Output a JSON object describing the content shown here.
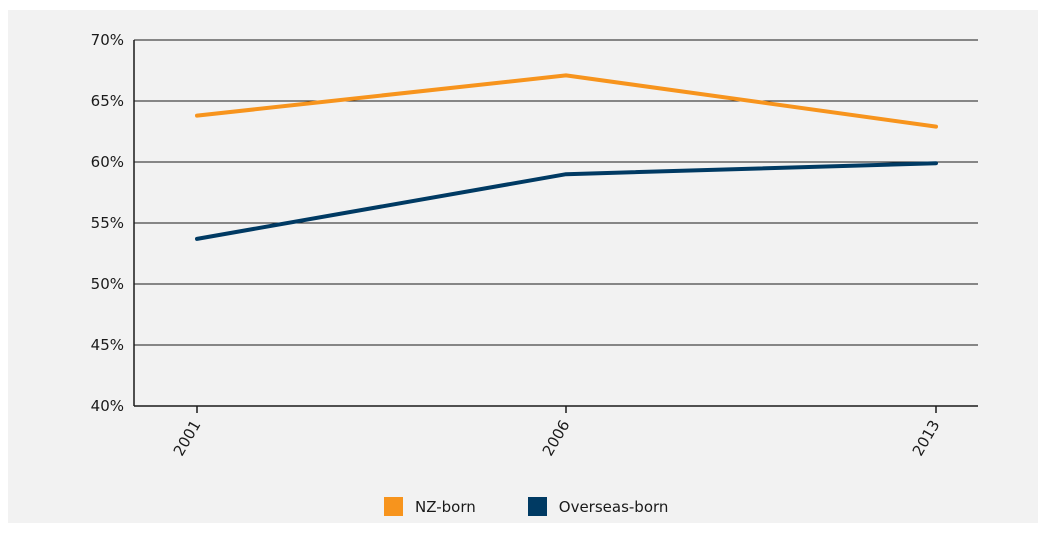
{
  "chart_data": {
    "type": "line",
    "title": "",
    "xlabel": "",
    "ylabel": "",
    "categories": [
      "2001",
      "2006",
      "2013"
    ],
    "y_tick_labels": [
      "40%",
      "45%",
      "50%",
      "55%",
      "60%",
      "65%",
      "70%"
    ],
    "y_ticks": [
      40,
      45,
      50,
      55,
      60,
      65,
      70
    ],
    "ylim": [
      40,
      70
    ],
    "grid": true,
    "legend_position": "bottom",
    "series": [
      {
        "name": "NZ-born",
        "color": "#f7941d",
        "values": [
          63.8,
          67.1,
          62.9
        ]
      },
      {
        "name": "Overseas-born",
        "color": "#003a63",
        "values": [
          53.7,
          59.0,
          59.9
        ]
      }
    ]
  }
}
